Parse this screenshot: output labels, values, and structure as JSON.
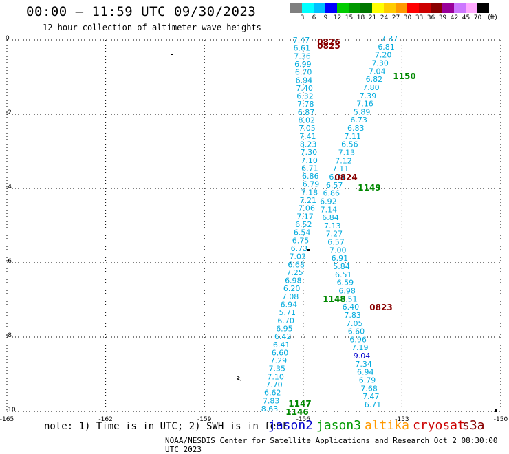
{
  "header": {
    "title": "00:00 – 11:59 UTC 09/30/2023",
    "subtitle": "12 hour collection of altimeter wave heights"
  },
  "legend": {
    "unit": "(ft)",
    "colors": [
      "#7f7f7f",
      "#00ffff",
      "#00bfff",
      "#0000ff",
      "#00cc00",
      "#009900",
      "#007700",
      "#ffff00",
      "#ffcc00",
      "#ff9900",
      "#ff0000",
      "#cc0000",
      "#880000",
      "#990099",
      "#cc77ff",
      "#ffaaff",
      "#000000"
    ],
    "labels": [
      "3",
      "6",
      "9",
      "12",
      "15",
      "18",
      "21",
      "24",
      "27",
      "30",
      "33",
      "36",
      "39",
      "42",
      "45",
      "70"
    ]
  },
  "map": {
    "lon_ticks": [
      -165,
      -162,
      -159,
      -156,
      -153,
      -150
    ],
    "lat_ticks": [
      0,
      -2,
      -4,
      -6,
      -8,
      -10
    ],
    "lon_labels": [
      "-165",
      "-162",
      "-159",
      "-156",
      "-153",
      "-150"
    ],
    "lat_labels": [
      "0",
      "-2",
      "-4",
      "-6",
      "-8",
      "-10"
    ]
  },
  "tracks": [
    {
      "name": "cryosat",
      "color": "#00aadd",
      "values": [
        "7.47",
        "6.61",
        "7.36",
        "6.99",
        "6.70",
        "6.94",
        "7.40",
        "6.32",
        "7.78",
        "6.87",
        "8.02",
        "7.05",
        "7.41",
        "8.23",
        "7.30",
        "7.10",
        "6.71",
        "6.86",
        "6.79",
        "7.18",
        "7.21",
        "7.06",
        "7.17",
        "6.52",
        "6.54",
        "6.75",
        "6.73",
        "7.03",
        "6.68",
        "7.25",
        "6.98",
        "6.20",
        "7.08",
        "6.94",
        "5.71",
        "6.70",
        "6.95",
        "6.42",
        "6.41",
        "6.60",
        "7.29",
        "7.35",
        "7.10",
        "7.70",
        "6.62",
        "7.83",
        "8.63"
      ]
    },
    {
      "name": "jason3",
      "color": "#00aadd",
      "values": [
        "7.37",
        "6.81",
        "7.20",
        "7.30",
        "7.04",
        "6.82",
        "7.80",
        "7.39",
        "7.16",
        "5.89",
        "6.73",
        "6.83",
        "7.11",
        "6.56",
        "7.13",
        "7.12",
        "7.11",
        "6.71",
        "6.57",
        "6.86",
        "6.92",
        "7.14",
        "6.84",
        "7.13",
        "7.27",
        "6.57",
        "7.00",
        "6.91",
        "5.84",
        "6.51",
        "6.59",
        "6.98",
        "7.51",
        "6.40",
        "7.83",
        "7.05",
        "6.60",
        "6.96",
        "7.19",
        "9.04",
        "7.34",
        "6.94",
        "6.79",
        "7.68",
        "7.47",
        "6.71"
      ]
    }
  ],
  "time_labels": [
    {
      "text": "0826",
      "color": "#880000"
    },
    {
      "text": "0825",
      "color": "#880000"
    },
    {
      "text": "1150",
      "color": "#008800"
    },
    {
      "text": "0824",
      "color": "#880000"
    },
    {
      "text": "1149",
      "color": "#008800"
    },
    {
      "text": "1148",
      "color": "#008800"
    },
    {
      "text": "0823",
      "color": "#880000"
    },
    {
      "text": "1147",
      "color": "#008800"
    },
    {
      "text": "1146",
      "color": "#008800"
    }
  ],
  "footer": {
    "note": "note: 1) Time is in UTC; 2) SWH is in feet",
    "satellites": [
      {
        "name": "jason2",
        "color": "#0000cc"
      },
      {
        "name": "jason3",
        "color": "#009900"
      },
      {
        "name": "altika",
        "color": "#ff9900"
      },
      {
        "name": "cryosat",
        "color": "#cc0000"
      },
      {
        "name": "s3a",
        "color": "#880000"
      }
    ],
    "credit": "NOAA/NESDIS Center for Satellite Applications and Research   Oct  2 08:30:00 UTC 2023"
  }
}
